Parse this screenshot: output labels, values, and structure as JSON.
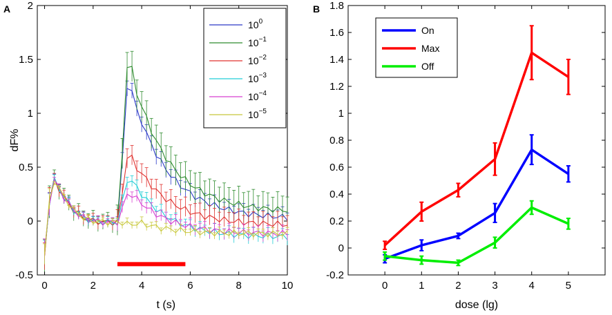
{
  "chart_data": [
    {
      "panel": "A",
      "type": "line",
      "xlabel": "t (s)",
      "ylabel": "dF%",
      "xlim": [
        -0.3,
        10
      ],
      "ylim": [
        -0.5,
        2
      ],
      "xticks": [
        0,
        2,
        4,
        6,
        8,
        10
      ],
      "yticks": [
        -0.5,
        0,
        0.5,
        1,
        1.5,
        2
      ],
      "grid": false,
      "legend_position": "top-right",
      "stimulus_bar": {
        "start": 3.0,
        "end": 5.8,
        "y": -0.4,
        "color": "#ff0000"
      },
      "anchors": [
        [
          0,
          -0.3
        ],
        [
          0.25,
          0.3
        ],
        [
          0.4,
          0.38
        ],
        [
          0.8,
          0.22
        ],
        [
          1.2,
          0.1
        ],
        [
          1.6,
          0.03
        ],
        [
          2.0,
          0.0
        ],
        [
          2.5,
          -0.01
        ],
        [
          3.0,
          -0.01
        ],
        [
          3.05,
          0
        ],
        [
          3.4,
          1
        ],
        [
          3.6,
          0.97
        ],
        [
          4.0,
          0.66
        ],
        [
          4.5,
          0.48
        ],
        [
          5.0,
          0.38
        ],
        [
          6.0,
          0.3
        ],
        [
          7.0,
          0.22
        ],
        [
          8.0,
          0.15
        ],
        [
          9.0,
          0.09
        ],
        [
          10.0,
          0.03
        ]
      ],
      "series": [
        {
          "label_base": "10",
          "label_exp": "0",
          "color": "#2a38c8",
          "peak": 1.25,
          "tail": 0.0,
          "err": 0.07
        },
        {
          "label_base": "10",
          "label_exp": "−1",
          "color": "#2e8b2e",
          "peak": 1.45,
          "tail": 0.06,
          "err": 0.14
        },
        {
          "label_base": "10",
          "label_exp": "−2",
          "color": "#e0312e",
          "peak": 0.6,
          "tail": -0.05,
          "err": 0.09
        },
        {
          "label_base": "10",
          "label_exp": "−3",
          "color": "#22cdd6",
          "peak": 0.38,
          "tail": -0.15,
          "err": 0.05
        },
        {
          "label_base": "10",
          "label_exp": "−4",
          "color": "#d83fd0",
          "peak": 0.25,
          "tail": -0.12,
          "err": 0.05
        },
        {
          "label_base": "10",
          "label_exp": "−5",
          "color": "#c8c83a",
          "peak": -0.03,
          "tail": -0.12,
          "err": 0.03
        }
      ]
    },
    {
      "panel": "B",
      "type": "line",
      "xlabel": "dose (lg)",
      "ylabel": "",
      "xlim": [
        -1,
        6
      ],
      "ylim": [
        -0.2,
        1.8
      ],
      "xticks": [
        0,
        1,
        2,
        3,
        4,
        5
      ],
      "yticks": [
        -0.2,
        0,
        0.2,
        0.4,
        0.6,
        0.8,
        1,
        1.2,
        1.4,
        1.6,
        1.8
      ],
      "grid": false,
      "legend_position": "top-left",
      "x": [
        0,
        1,
        2,
        3,
        4,
        5
      ],
      "series": [
        {
          "name": "On",
          "color": "#0000ff",
          "values": [
            -0.08,
            0.02,
            0.09,
            0.26,
            0.73,
            0.55
          ],
          "err": [
            0.03,
            0.04,
            0.02,
            0.07,
            0.11,
            0.06
          ]
        },
        {
          "name": "Max",
          "color": "#ff0000",
          "values": [
            0.02,
            0.27,
            0.43,
            0.66,
            1.45,
            1.27
          ],
          "err": [
            0.03,
            0.07,
            0.05,
            0.12,
            0.2,
            0.13
          ]
        },
        {
          "name": "Off",
          "color": "#00ee00",
          "values": [
            -0.06,
            -0.09,
            -0.11,
            0.04,
            0.3,
            0.18
          ],
          "err": [
            0.03,
            0.03,
            0.02,
            0.04,
            0.05,
            0.04
          ]
        }
      ]
    }
  ]
}
